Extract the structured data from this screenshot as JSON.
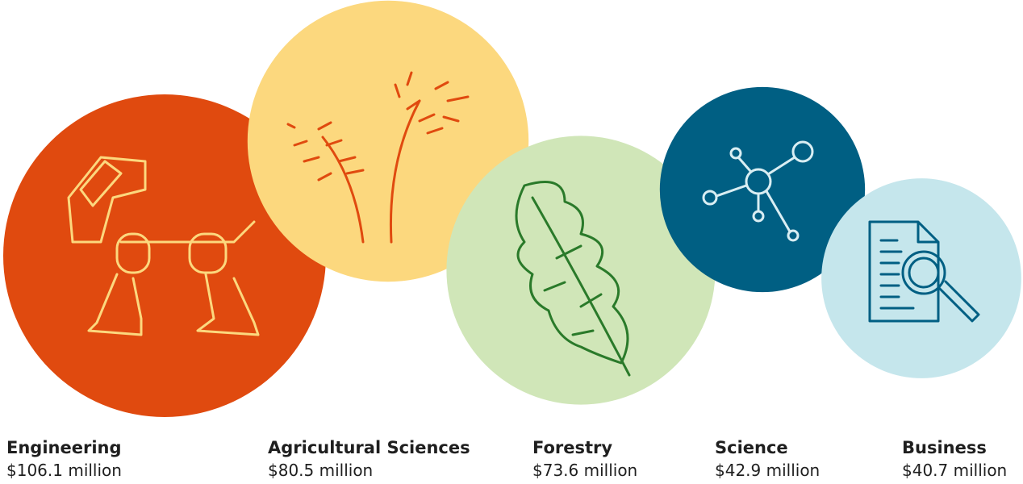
{
  "chart_data": {
    "type": "bubble",
    "categories": [
      "Engineering",
      "Agricultural Sciences",
      "Forestry",
      "Science",
      "Business"
    ],
    "values": [
      106.1,
      80.5,
      73.6,
      42.9,
      40.7
    ],
    "value_labels": [
      "$106.1 million",
      "$80.5 million",
      "$73.6 million",
      "$42.9 million",
      "$40.7 million"
    ],
    "colors": [
      "#e04a0f",
      "#fcd87e",
      "#d0e6b8",
      "#005f83",
      "#c5e6ec"
    ]
  }
}
